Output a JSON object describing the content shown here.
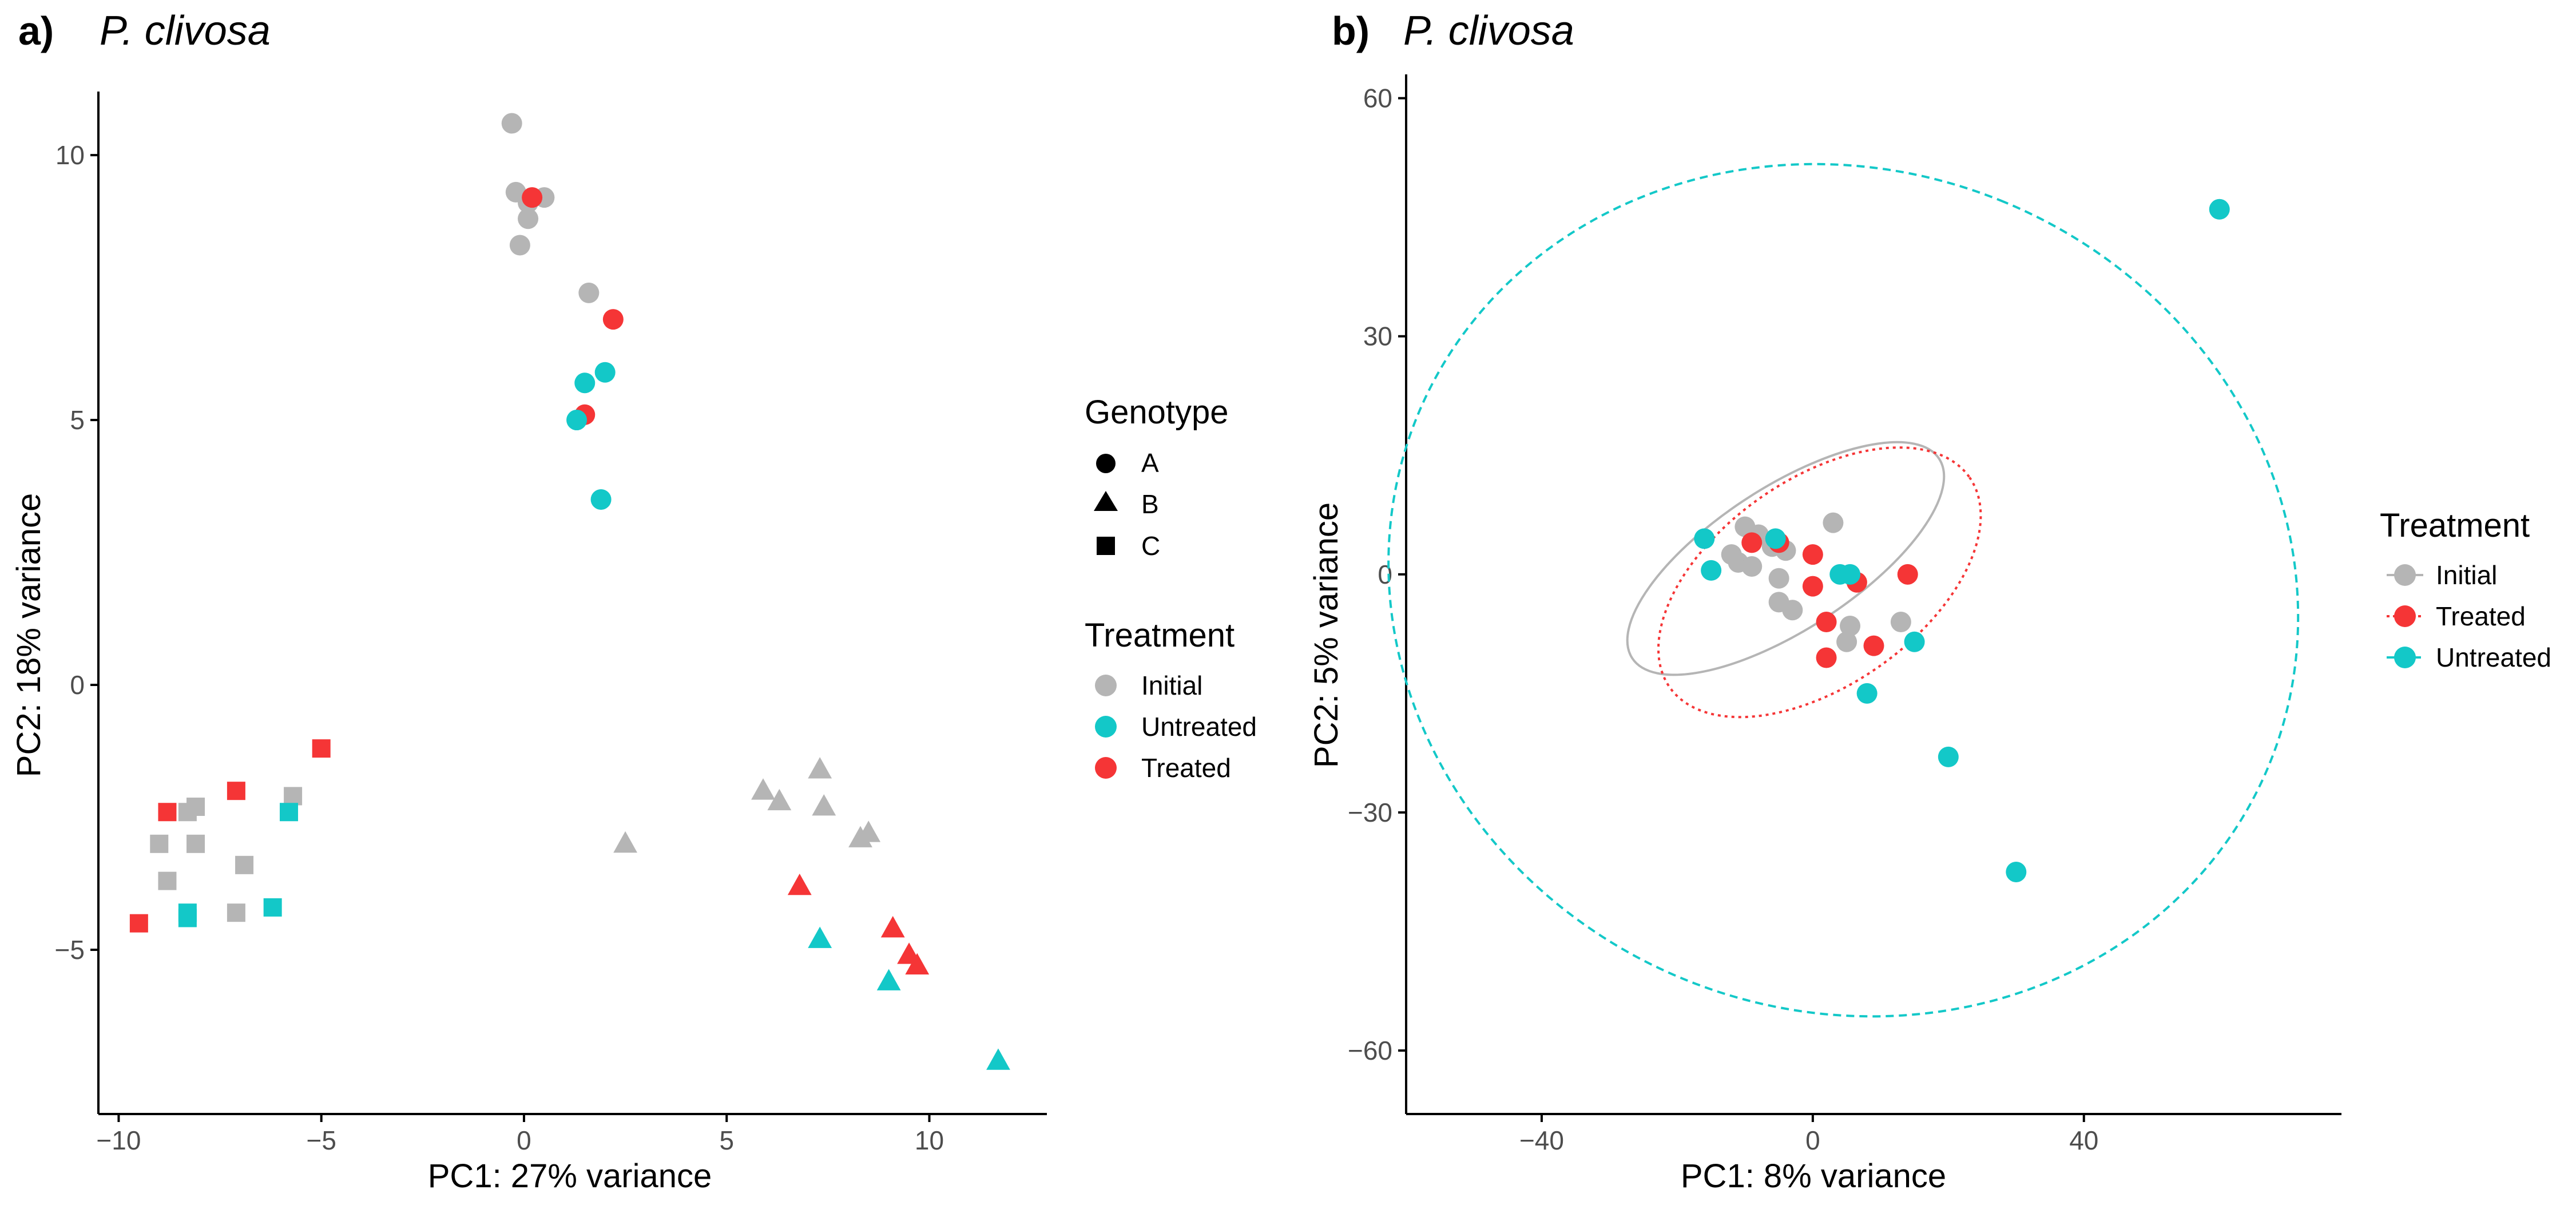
{
  "colors": {
    "Initial": "#B5B5B5",
    "Treated": "#F53536",
    "Untreated": "#13C8C8",
    "axis": "#000000",
    "tick_text": "#4d4d4d"
  },
  "chart_data": [
    {
      "panel": "a)",
      "title": "P. clivosa",
      "type": "scatter",
      "xlabel": "PC1: 27% variance",
      "ylabel": "PC2: 18% variance",
      "xlim": [
        -10.5,
        12.9
      ],
      "ylim": [
        -8.1,
        11.2
      ],
      "xticks": [
        -10,
        -5,
        0,
        5,
        10
      ],
      "yticks": [
        -5,
        0,
        5,
        10
      ],
      "xtick_labels": [
        "−10",
        "−5",
        "0",
        "5",
        "10"
      ],
      "ytick_labels": [
        "−5",
        "0",
        "5",
        "10"
      ],
      "grid": false,
      "legend": [
        {
          "title": "Genotype",
          "items": [
            {
              "label": "A",
              "shape": "circle"
            },
            {
              "label": "B",
              "shape": "triangle"
            },
            {
              "label": "C",
              "shape": "square"
            }
          ]
        },
        {
          "title": "Treatment",
          "items": [
            {
              "label": "Initial",
              "treatment": "Initial"
            },
            {
              "label": "Untreated",
              "treatment": "Untreated"
            },
            {
              "label": "Treated",
              "treatment": "Treated"
            }
          ]
        }
      ],
      "points": [
        {
          "x": -0.3,
          "y": 10.6,
          "genotype": "A",
          "treatment": "Initial"
        },
        {
          "x": -0.2,
          "y": 9.3,
          "genotype": "A",
          "treatment": "Initial"
        },
        {
          "x": 0.1,
          "y": 9.1,
          "genotype": "A",
          "treatment": "Initial"
        },
        {
          "x": 0.5,
          "y": 9.2,
          "genotype": "A",
          "treatment": "Initial"
        },
        {
          "x": 0.1,
          "y": 8.8,
          "genotype": "A",
          "treatment": "Initial"
        },
        {
          "x": -0.1,
          "y": 8.3,
          "genotype": "A",
          "treatment": "Initial"
        },
        {
          "x": 1.6,
          "y": 7.4,
          "genotype": "A",
          "treatment": "Initial"
        },
        {
          "x": 0.2,
          "y": 9.2,
          "genotype": "A",
          "treatment": "Treated"
        },
        {
          "x": 2.2,
          "y": 6.9,
          "genotype": "A",
          "treatment": "Treated"
        },
        {
          "x": 1.5,
          "y": 5.1,
          "genotype": "A",
          "treatment": "Treated"
        },
        {
          "x": 1.5,
          "y": 5.7,
          "genotype": "A",
          "treatment": "Untreated"
        },
        {
          "x": 2.0,
          "y": 5.9,
          "genotype": "A",
          "treatment": "Untreated"
        },
        {
          "x": 1.3,
          "y": 5.0,
          "genotype": "A",
          "treatment": "Untreated"
        },
        {
          "x": 1.9,
          "y": 3.5,
          "genotype": "A",
          "treatment": "Untreated"
        },
        {
          "x": 2.5,
          "y": -3.0,
          "genotype": "B",
          "treatment": "Initial"
        },
        {
          "x": 5.9,
          "y": -2.0,
          "genotype": "B",
          "treatment": "Initial"
        },
        {
          "x": 6.3,
          "y": -2.2,
          "genotype": "B",
          "treatment": "Initial"
        },
        {
          "x": 7.3,
          "y": -1.6,
          "genotype": "B",
          "treatment": "Initial"
        },
        {
          "x": 7.4,
          "y": -2.3,
          "genotype": "B",
          "treatment": "Initial"
        },
        {
          "x": 8.5,
          "y": -2.8,
          "genotype": "B",
          "treatment": "Initial"
        },
        {
          "x": 8.3,
          "y": -2.9,
          "genotype": "B",
          "treatment": "Initial"
        },
        {
          "x": 6.8,
          "y": -3.8,
          "genotype": "B",
          "treatment": "Treated"
        },
        {
          "x": 9.1,
          "y": -4.6,
          "genotype": "B",
          "treatment": "Treated"
        },
        {
          "x": 9.5,
          "y": -5.1,
          "genotype": "B",
          "treatment": "Treated"
        },
        {
          "x": 9.7,
          "y": -5.3,
          "genotype": "B",
          "treatment": "Treated"
        },
        {
          "x": 7.3,
          "y": -4.8,
          "genotype": "B",
          "treatment": "Untreated"
        },
        {
          "x": 9.0,
          "y": -5.6,
          "genotype": "B",
          "treatment": "Untreated"
        },
        {
          "x": 11.7,
          "y": -7.1,
          "genotype": "B",
          "treatment": "Untreated"
        },
        {
          "x": -9.5,
          "y": -4.5,
          "genotype": "C",
          "treatment": "Treated"
        },
        {
          "x": -8.8,
          "y": -2.4,
          "genotype": "C",
          "treatment": "Treated"
        },
        {
          "x": -7.1,
          "y": -2.0,
          "genotype": "C",
          "treatment": "Treated"
        },
        {
          "x": -5.0,
          "y": -1.2,
          "genotype": "C",
          "treatment": "Treated"
        },
        {
          "x": -8.3,
          "y": -2.4,
          "genotype": "C",
          "treatment": "Initial"
        },
        {
          "x": -8.1,
          "y": -2.3,
          "genotype": "C",
          "treatment": "Initial"
        },
        {
          "x": -9.0,
          "y": -3.0,
          "genotype": "C",
          "treatment": "Initial"
        },
        {
          "x": -8.1,
          "y": -3.0,
          "genotype": "C",
          "treatment": "Initial"
        },
        {
          "x": -8.8,
          "y": -3.7,
          "genotype": "C",
          "treatment": "Initial"
        },
        {
          "x": -6.9,
          "y": -3.4,
          "genotype": "C",
          "treatment": "Initial"
        },
        {
          "x": -5.7,
          "y": -2.1,
          "genotype": "C",
          "treatment": "Initial"
        },
        {
          "x": -7.1,
          "y": -4.3,
          "genotype": "C",
          "treatment": "Initial"
        },
        {
          "x": -8.3,
          "y": -4.3,
          "genotype": "C",
          "treatment": "Untreated"
        },
        {
          "x": -8.3,
          "y": -4.4,
          "genotype": "C",
          "treatment": "Untreated"
        },
        {
          "x": -6.2,
          "y": -4.2,
          "genotype": "C",
          "treatment": "Untreated"
        },
        {
          "x": -5.8,
          "y": -2.4,
          "genotype": "C",
          "treatment": "Untreated"
        }
      ]
    },
    {
      "panel": "b)",
      "title": "P. clivosa",
      "type": "scatter",
      "xlabel": "PC1: 8% variance",
      "ylabel": "PC2: 5% variance",
      "xlim": [
        -60,
        78
      ],
      "ylim": [
        -68,
        63
      ],
      "xticks": [
        -40,
        0,
        40
      ],
      "yticks": [
        -60,
        -30,
        0,
        30,
        60
      ],
      "xtick_labels": [
        "−40",
        "0",
        "40"
      ],
      "ytick_labels": [
        "−60",
        "−30",
        "0",
        "30",
        "60"
      ],
      "grid": false,
      "legend": [
        {
          "title": "Treatment",
          "items": [
            {
              "label": "Initial",
              "treatment": "Initial",
              "line": "solid"
            },
            {
              "label": "Treated",
              "treatment": "Treated",
              "line": "dotted"
            },
            {
              "label": "Untreated",
              "treatment": "Untreated",
              "line": "dashed"
            }
          ]
        }
      ],
      "ellipses": [
        {
          "treatment": "Initial",
          "line": "solid",
          "cx": -4,
          "cy": 2,
          "rx": 27,
          "ry": 9,
          "angle_deg": -33
        },
        {
          "treatment": "Treated",
          "line": "dotted",
          "cx": 1,
          "cy": -1,
          "rx": 27,
          "ry": 13,
          "angle_deg": -35
        },
        {
          "treatment": "Untreated",
          "line": "dashed",
          "cx": 4.5,
          "cy": -2,
          "rx": 62,
          "ry": 58,
          "angle_deg": -68
        }
      ],
      "points": [
        {
          "x": -10,
          "y": 6,
          "treatment": "Initial"
        },
        {
          "x": 3,
          "y": 6.5,
          "treatment": "Initial"
        },
        {
          "x": -8,
          "y": 5,
          "treatment": "Initial"
        },
        {
          "x": -6,
          "y": 3.5,
          "treatment": "Initial"
        },
        {
          "x": -12,
          "y": 2.5,
          "treatment": "Initial"
        },
        {
          "x": -11,
          "y": 1.5,
          "treatment": "Initial"
        },
        {
          "x": -9,
          "y": 1,
          "treatment": "Initial"
        },
        {
          "x": -5,
          "y": -0.5,
          "treatment": "Initial"
        },
        {
          "x": -5,
          "y": -3.5,
          "treatment": "Initial"
        },
        {
          "x": -3,
          "y": -4.5,
          "treatment": "Initial"
        },
        {
          "x": 5.5,
          "y": -6.5,
          "treatment": "Initial"
        },
        {
          "x": 5,
          "y": -8.5,
          "treatment": "Initial"
        },
        {
          "x": 13,
          "y": -6,
          "treatment": "Initial"
        },
        {
          "x": -4,
          "y": 3,
          "treatment": "Initial"
        },
        {
          "x": -9,
          "y": 4,
          "treatment": "Treated"
        },
        {
          "x": -5,
          "y": 4,
          "treatment": "Treated"
        },
        {
          "x": 0,
          "y": 2.5,
          "treatment": "Treated"
        },
        {
          "x": 0,
          "y": -1.5,
          "treatment": "Treated"
        },
        {
          "x": 6.5,
          "y": -1,
          "treatment": "Treated"
        },
        {
          "x": 14,
          "y": 0,
          "treatment": "Treated"
        },
        {
          "x": 2,
          "y": -6,
          "treatment": "Treated"
        },
        {
          "x": 9,
          "y": -9,
          "treatment": "Treated"
        },
        {
          "x": 2,
          "y": -10.5,
          "treatment": "Treated"
        },
        {
          "x": -16,
          "y": 4.5,
          "treatment": "Untreated"
        },
        {
          "x": -15,
          "y": 0.5,
          "treatment": "Untreated"
        },
        {
          "x": -5.5,
          "y": 4.5,
          "treatment": "Untreated"
        },
        {
          "x": 4,
          "y": 0,
          "treatment": "Untreated"
        },
        {
          "x": 5.5,
          "y": 0,
          "treatment": "Untreated"
        },
        {
          "x": 15,
          "y": -8.5,
          "treatment": "Untreated"
        },
        {
          "x": 8,
          "y": -15,
          "treatment": "Untreated"
        },
        {
          "x": 20,
          "y": -23,
          "treatment": "Untreated"
        },
        {
          "x": 30,
          "y": -37.5,
          "treatment": "Untreated"
        },
        {
          "x": 60,
          "y": 46,
          "treatment": "Untreated"
        }
      ]
    }
  ]
}
